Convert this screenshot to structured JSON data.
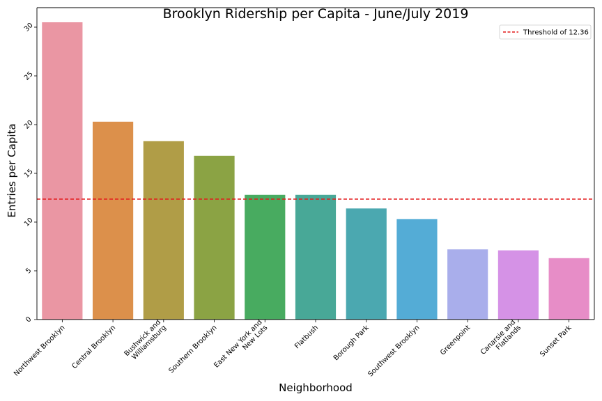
{
  "chart_data": {
    "type": "bar",
    "title": "Brooklyn Ridership per Capita - June/July 2019",
    "xlabel": "Neighborhood",
    "ylabel": "Entries per Capita",
    "ylim": [
      0,
      32
    ],
    "yticks": [
      0,
      5,
      10,
      15,
      20,
      25,
      30
    ],
    "grid": false,
    "categories": [
      "Northwest Brooklyn",
      "Central Brooklyn",
      "Bushwick and Williamsburg",
      "Southern Brooklyn",
      "East New York and New Lots",
      "Flatbush",
      "Borough Park",
      "Southwest Brooklyn",
      "Greenpoint",
      "Canarsie and Flatlands",
      "Sunset Park"
    ],
    "category_lines": [
      [
        "Northwest Brooklyn"
      ],
      [
        "Central Brooklyn"
      ],
      [
        "Bushwick and",
        "Williamsburg"
      ],
      [
        "Southern Brooklyn"
      ],
      [
        "East New York and",
        "New Lots"
      ],
      [
        "Flatbush"
      ],
      [
        "Borough Park"
      ],
      [
        "Southwest Brooklyn"
      ],
      [
        "Greenpoint"
      ],
      [
        "Canarsie and",
        "Flatlands"
      ],
      [
        "Sunset Park"
      ]
    ],
    "values": [
      30.5,
      20.3,
      18.3,
      16.8,
      12.8,
      12.8,
      11.4,
      10.3,
      7.2,
      7.1,
      6.3
    ],
    "colors": [
      "#ea96a3",
      "#dc904b",
      "#b09d47",
      "#8ba344",
      "#48ab60",
      "#48a897",
      "#4ba8b0",
      "#54acd6",
      "#a9aeeb",
      "#d592e6",
      "#e78dc7"
    ],
    "threshold": {
      "value": 12.36,
      "label": "Threshold of 12.36",
      "color": "#e41a1c",
      "style": "dashed"
    },
    "legend": {
      "placement": "top-right"
    }
  }
}
